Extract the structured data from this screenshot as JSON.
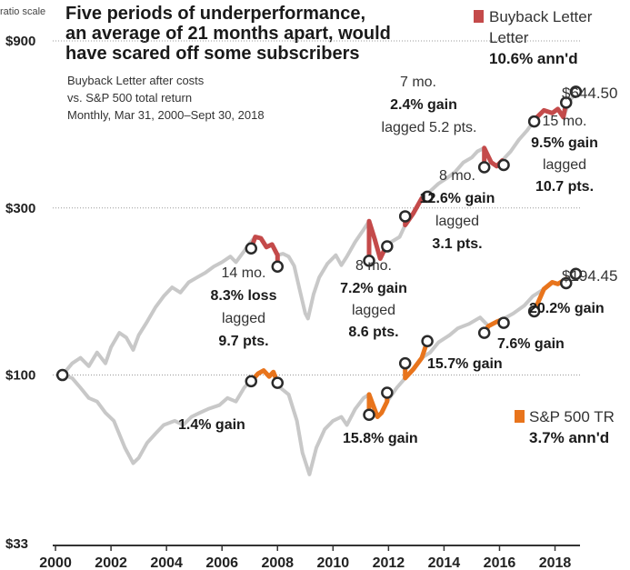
{
  "chart_data": {
    "type": "line",
    "title_lines": [
      "Five periods of underperformance,",
      "an average of 21 months apart, would",
      "have scared off some subscribers"
    ],
    "subtitle_lines": [
      "Buyback Letter after costs",
      "vs. S&P 500 total return",
      "Monthly, Mar 31, 2000–Sept 30, 2018"
    ],
    "y_scale": "log",
    "y_scale_note": "ratio scale",
    "ylim": [
      33,
      900
    ],
    "y_ticks": [
      {
        "value": 33,
        "label": "$33"
      },
      {
        "value": 100,
        "label": "$100"
      },
      {
        "value": 300,
        "label": "$300"
      },
      {
        "value": 900,
        "label": "$900"
      }
    ],
    "xlim": [
      1999.9,
      2018.9
    ],
    "x_ticks": [
      2000,
      2002,
      2004,
      2006,
      2008,
      2010,
      2012,
      2014,
      2016,
      2018
    ],
    "x_tick_labels": [
      "2000",
      "2002",
      "2004",
      "2006",
      "2008",
      "2010",
      "2012",
      "2014",
      "2016",
      "2018"
    ],
    "series": [
      {
        "name": "Buyback Letter",
        "legend_stat": "10.6% ann'd",
        "color": "#c44a4a",
        "end_label": "$644.50",
        "points": [
          [
            2000.25,
            100
          ],
          [
            2000.6,
            108
          ],
          [
            2000.9,
            112
          ],
          [
            2001.2,
            106
          ],
          [
            2001.5,
            116
          ],
          [
            2001.8,
            108
          ],
          [
            2002.0,
            120
          ],
          [
            2002.3,
            132
          ],
          [
            2002.55,
            128
          ],
          [
            2002.8,
            118
          ],
          [
            2003.0,
            130
          ],
          [
            2003.3,
            142
          ],
          [
            2003.6,
            156
          ],
          [
            2003.9,
            168
          ],
          [
            2004.2,
            178
          ],
          [
            2004.5,
            172
          ],
          [
            2004.8,
            184
          ],
          [
            2005.1,
            190
          ],
          [
            2005.4,
            196
          ],
          [
            2005.7,
            204
          ],
          [
            2006.0,
            210
          ],
          [
            2006.3,
            218
          ],
          [
            2006.5,
            210
          ],
          [
            2006.8,
            226
          ],
          [
            2007.0,
            238
          ],
          [
            2007.2,
            248
          ],
          [
            2007.4,
            246
          ],
          [
            2007.6,
            232
          ],
          [
            2007.8,
            236
          ],
          [
            2008.0,
            220
          ],
          [
            2008.2,
            222
          ],
          [
            2008.4,
            218
          ],
          [
            2008.6,
            205
          ],
          [
            2008.8,
            175
          ],
          [
            2009.0,
            150
          ],
          [
            2009.1,
            145
          ],
          [
            2009.3,
            170
          ],
          [
            2009.5,
            190
          ],
          [
            2009.8,
            208
          ],
          [
            2010.1,
            220
          ],
          [
            2010.3,
            206
          ],
          [
            2010.5,
            218
          ],
          [
            2010.8,
            240
          ],
          [
            2011.1,
            260
          ],
          [
            2011.3,
            275
          ],
          [
            2011.5,
            245
          ],
          [
            2011.7,
            215
          ],
          [
            2011.9,
            232
          ],
          [
            2012.1,
            240
          ],
          [
            2012.4,
            248
          ],
          [
            2012.6,
            268
          ],
          [
            2012.9,
            290
          ],
          [
            2013.2,
            320
          ],
          [
            2013.5,
            335
          ],
          [
            2013.8,
            352
          ],
          [
            2014.1,
            365
          ],
          [
            2014.4,
            380
          ],
          [
            2014.7,
            405
          ],
          [
            2015.0,
            418
          ],
          [
            2015.2,
            435
          ],
          [
            2015.45,
            445
          ],
          [
            2015.7,
            405
          ],
          [
            2015.9,
            395
          ],
          [
            2016.1,
            410
          ],
          [
            2016.4,
            435
          ],
          [
            2016.7,
            470
          ],
          [
            2017.0,
            500
          ],
          [
            2017.3,
            540
          ],
          [
            2017.6,
            570
          ],
          [
            2017.9,
            560
          ],
          [
            2018.1,
            575
          ],
          [
            2018.3,
            545
          ],
          [
            2018.5,
            600
          ],
          [
            2018.75,
            644.5
          ]
        ]
      },
      {
        "name": "S&P 500 TR",
        "legend_stat": "3.7% ann'd",
        "color": "#e8741c",
        "end_label": "$194.45",
        "points": [
          [
            2000.25,
            100
          ],
          [
            2000.6,
            98
          ],
          [
            2000.9,
            92
          ],
          [
            2001.2,
            86
          ],
          [
            2001.5,
            84
          ],
          [
            2001.8,
            78
          ],
          [
            2002.1,
            74
          ],
          [
            2002.5,
            62
          ],
          [
            2002.8,
            56
          ],
          [
            2003.0,
            58
          ],
          [
            2003.3,
            64
          ],
          [
            2003.6,
            68
          ],
          [
            2003.9,
            72
          ],
          [
            2004.3,
            74
          ],
          [
            2004.6,
            72
          ],
          [
            2004.9,
            76
          ],
          [
            2005.2,
            78
          ],
          [
            2005.5,
            80
          ],
          [
            2005.9,
            82
          ],
          [
            2006.2,
            86
          ],
          [
            2006.5,
            84
          ],
          [
            2006.8,
            92
          ],
          [
            2007.0,
            96
          ],
          [
            2007.3,
            101
          ],
          [
            2007.5,
            103
          ],
          [
            2007.7,
            99
          ],
          [
            2007.85,
            102
          ],
          [
            2008.1,
            92
          ],
          [
            2008.4,
            88
          ],
          [
            2008.7,
            74
          ],
          [
            2008.9,
            60
          ],
          [
            2009.15,
            52
          ],
          [
            2009.4,
            62
          ],
          [
            2009.7,
            70
          ],
          [
            2010.0,
            74
          ],
          [
            2010.3,
            76
          ],
          [
            2010.5,
            72
          ],
          [
            2010.8,
            80
          ],
          [
            2011.1,
            86
          ],
          [
            2011.3,
            88
          ],
          [
            2011.6,
            76
          ],
          [
            2011.75,
            78
          ],
          [
            2011.95,
            84
          ],
          [
            2012.3,
            92
          ],
          [
            2012.6,
            98
          ],
          [
            2012.9,
            104
          ],
          [
            2013.2,
            112
          ],
          [
            2013.5,
            116
          ],
          [
            2013.8,
            124
          ],
          [
            2014.2,
            130
          ],
          [
            2014.5,
            136
          ],
          [
            2014.9,
            140
          ],
          [
            2015.3,
            146
          ],
          [
            2015.6,
            138
          ],
          [
            2015.9,
            142
          ],
          [
            2016.1,
            144
          ],
          [
            2016.5,
            150
          ],
          [
            2016.9,
            158
          ],
          [
            2017.2,
            168
          ],
          [
            2017.6,
            176
          ],
          [
            2017.9,
            184
          ],
          [
            2018.1,
            182
          ],
          [
            2018.4,
            188
          ],
          [
            2018.75,
            194.45
          ]
        ]
      }
    ],
    "periods": [
      {
        "start": 2007.05,
        "end": 2008.0,
        "buyback_start": 230,
        "buyback_end": 204,
        "sp_start": 96,
        "sp_end": 95
      },
      {
        "start": 2011.3,
        "end": 2011.95,
        "buyback_start": 212,
        "buyback_end": 233,
        "sp_start": 77,
        "sp_end": 89
      },
      {
        "start": 2012.6,
        "end": 2013.4,
        "buyback_start": 284,
        "buyback_end": 323,
        "sp_start": 108,
        "sp_end": 125
      },
      {
        "start": 2015.45,
        "end": 2016.15,
        "buyback_start": 392,
        "buyback_end": 398,
        "sp_start": 132,
        "sp_end": 141
      },
      {
        "start": 2017.25,
        "end": 2018.4,
        "buyback_start": 530,
        "buyback_end": 600,
        "sp_start": 152,
        "sp_end": 183
      }
    ],
    "annotations": [
      {
        "lines": [
          {
            "text": "14 mo.",
            "bold": false
          },
          {
            "text": "8.3% loss",
            "bold": true
          },
          {
            "text": "lagged",
            "bold": false
          },
          {
            "text": "9.7 pts.",
            "bold": true
          }
        ]
      },
      {
        "lines": [
          {
            "text": "1.4% gain",
            "bold": true
          }
        ]
      },
      {
        "lines": [
          {
            "text": "8 mo.",
            "bold": false
          },
          {
            "text": "7.2% gain",
            "bold": true
          },
          {
            "text": "lagged",
            "bold": false
          },
          {
            "text": "8.6 pts.",
            "bold": true
          }
        ]
      },
      {
        "lines": [
          {
            "text": "15.8% gain",
            "bold": true
          }
        ]
      },
      {
        "lines": [
          {
            "text": "7 mo.",
            "bold": false
          },
          {
            "text": "2.4% gain",
            "bold": true
          },
          {
            "text": "lagged 5.2 pts.",
            "bold": false
          }
        ]
      },
      {
        "lines": [
          {
            "text": "8 mo.",
            "bold": false
          },
          {
            "text": "12.6% gain",
            "bold": true
          },
          {
            "text": "lagged",
            "bold": false
          },
          {
            "text": "3.1 pts.",
            "bold": true
          }
        ]
      },
      {
        "lines": [
          {
            "text": "15.7% gain",
            "bold": true
          }
        ]
      },
      {
        "lines": [
          {
            "text": "7.6% gain",
            "bold": true
          }
        ]
      },
      {
        "lines": [
          {
            "text": "15 mo.",
            "bold": false
          },
          {
            "text": "9.5% gain",
            "bold": true
          },
          {
            "text": "lagged",
            "bold": false
          },
          {
            "text": "10.7 pts.",
            "bold": true
          }
        ]
      },
      {
        "lines": [
          {
            "text": "20.2% gain",
            "bold": true
          }
        ]
      }
    ],
    "base_color": "#c8c8c8"
  }
}
